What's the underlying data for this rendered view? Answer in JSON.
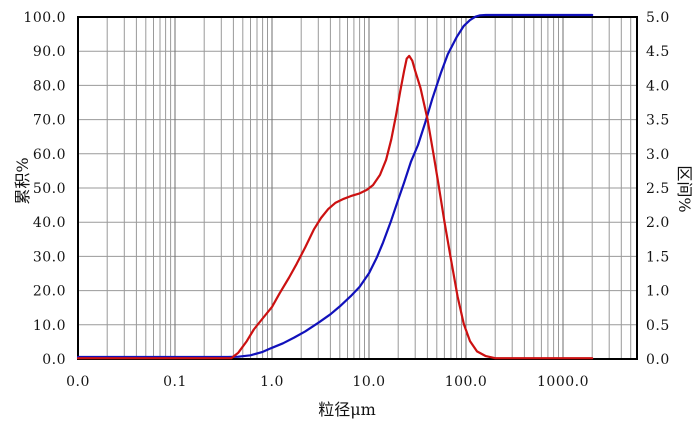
{
  "chart_data": {
    "type": "line",
    "title": "",
    "x_axis": {
      "label": "粒径μm",
      "scale": "log",
      "min": 0.01,
      "max": 5800,
      "ticks": [
        {
          "label": "0.0",
          "value": 0.01
        },
        {
          "label": "0.1",
          "value": 0.1
        },
        {
          "label": "1.0",
          "value": 1
        },
        {
          "label": "10.0",
          "value": 10
        },
        {
          "label": "100.0",
          "value": 100
        },
        {
          "label": "1000.0",
          "value": 1000
        }
      ]
    },
    "y_left": {
      "label": "累积%",
      "min": 0,
      "max": 100,
      "step": 10,
      "ticks": [
        "100.0",
        "90.0",
        "80.0",
        "70.0",
        "60.0",
        "50.0",
        "40.0",
        "30.0",
        "20.0",
        "10.0",
        "0.0"
      ]
    },
    "y_right": {
      "label": "区间%",
      "min": 0,
      "max": 5,
      "step": 0.5,
      "ticks": [
        "5.0",
        "4.5",
        "4.0",
        "3.5",
        "3.0",
        "2.5",
        "2.0",
        "1.5",
        "1.0",
        "0.5",
        "0.0"
      ]
    },
    "grid": {
      "minor_color": "#9a9a9a",
      "major_color": "#6f6f6f",
      "frame_color": "#000000"
    },
    "series": [
      {
        "id": "cumulative",
        "name": "累积%",
        "axis": "left",
        "color": "#1111bb",
        "points": [
          [
            0.01,
            0
          ],
          [
            0.35,
            0
          ],
          [
            0.45,
            0.1
          ],
          [
            0.6,
            0.5
          ],
          [
            0.8,
            1.5
          ],
          [
            1.0,
            2.7
          ],
          [
            1.3,
            4.0
          ],
          [
            1.7,
            5.7
          ],
          [
            2.2,
            7.5
          ],
          [
            3,
            10
          ],
          [
            4,
            12.5
          ],
          [
            5,
            14.8
          ],
          [
            6.5,
            17.8
          ],
          [
            8,
            20.5
          ],
          [
            10,
            24.5
          ],
          [
            12,
            29
          ],
          [
            14,
            33.5
          ],
          [
            17,
            40
          ],
          [
            20,
            46
          ],
          [
            23,
            51
          ],
          [
            27,
            57
          ],
          [
            32,
            62
          ],
          [
            38,
            68.5
          ],
          [
            45,
            75.5
          ],
          [
            55,
            83
          ],
          [
            65,
            88.5
          ],
          [
            80,
            93.5
          ],
          [
            95,
            96.8
          ],
          [
            110,
            98.5
          ],
          [
            125,
            99.5
          ],
          [
            140,
            99.9
          ],
          [
            160,
            100
          ],
          [
            2000,
            100
          ]
        ]
      },
      {
        "id": "interval",
        "name": "区间%",
        "axis": "right",
        "color": "#cc1111",
        "points": [
          [
            0.01,
            0
          ],
          [
            0.38,
            0
          ],
          [
            0.45,
            0.08
          ],
          [
            0.55,
            0.25
          ],
          [
            0.65,
            0.42
          ],
          [
            0.8,
            0.58
          ],
          [
            1.0,
            0.75
          ],
          [
            1.2,
            0.95
          ],
          [
            1.5,
            1.18
          ],
          [
            1.8,
            1.38
          ],
          [
            2.2,
            1.62
          ],
          [
            2.7,
            1.88
          ],
          [
            3.2,
            2.05
          ],
          [
            3.8,
            2.18
          ],
          [
            4.5,
            2.27
          ],
          [
            5.5,
            2.33
          ],
          [
            6.5,
            2.37
          ],
          [
            8,
            2.41
          ],
          [
            9.5,
            2.46
          ],
          [
            11,
            2.53
          ],
          [
            13,
            2.68
          ],
          [
            15,
            2.9
          ],
          [
            17,
            3.2
          ],
          [
            19,
            3.55
          ],
          [
            21,
            3.9
          ],
          [
            23,
            4.2
          ],
          [
            24.5,
            4.38
          ],
          [
            26,
            4.42
          ],
          [
            28,
            4.35
          ],
          [
            30,
            4.2
          ],
          [
            34,
            3.95
          ],
          [
            40,
            3.5
          ],
          [
            46,
            3.0
          ],
          [
            52,
            2.55
          ],
          [
            60,
            2.0
          ],
          [
            70,
            1.45
          ],
          [
            82,
            0.9
          ],
          [
            95,
            0.5
          ],
          [
            110,
            0.25
          ],
          [
            130,
            0.1
          ],
          [
            160,
            0.03
          ],
          [
            200,
            0
          ],
          [
            2000,
            0
          ]
        ]
      }
    ]
  }
}
